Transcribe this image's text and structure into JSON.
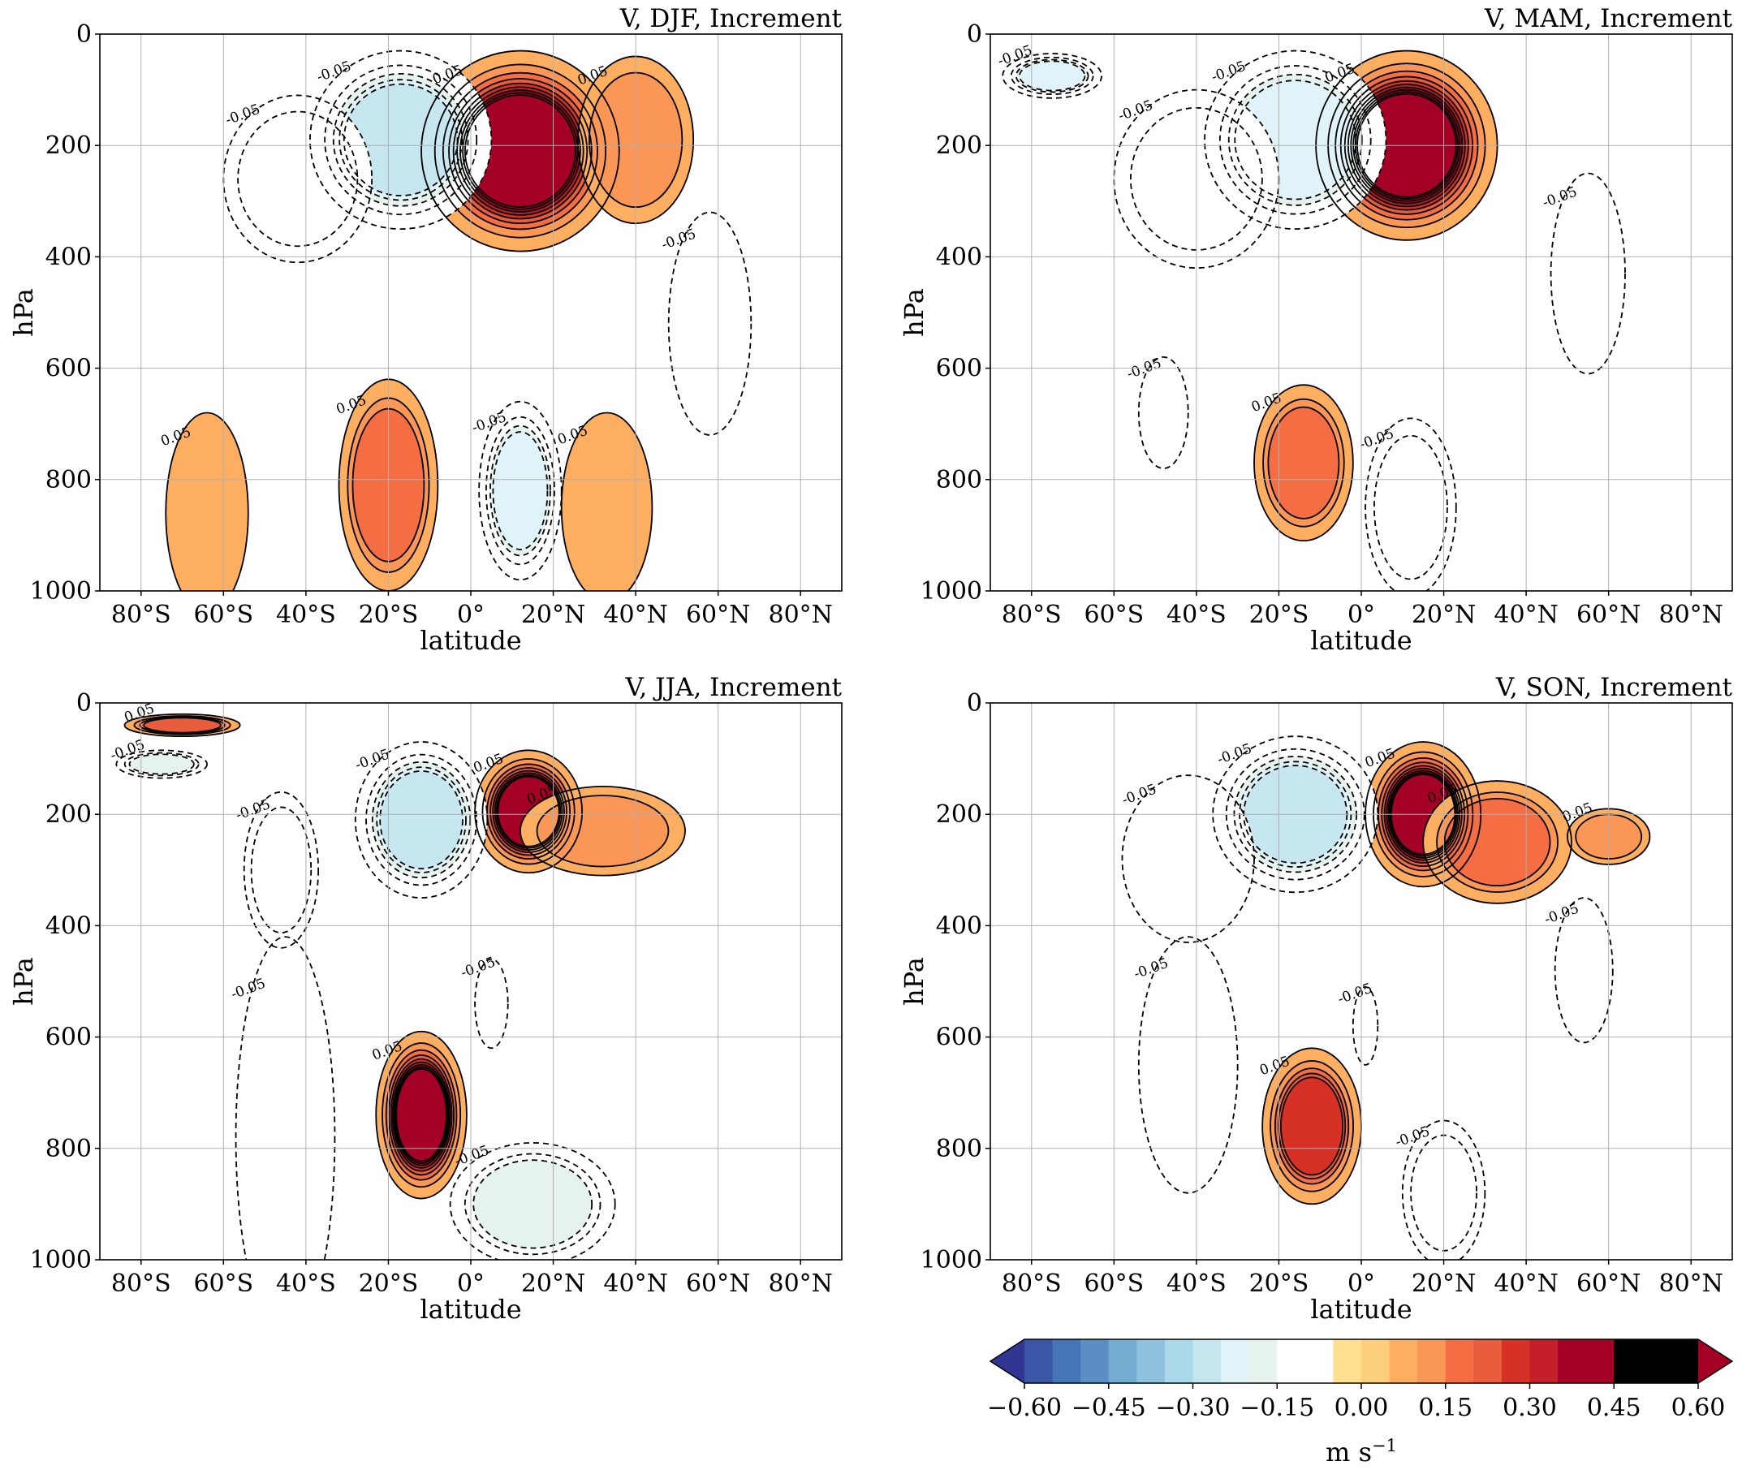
{
  "chart_data": {
    "type": "contour",
    "x_ticks": [
      "80°S",
      "60°S",
      "40°S",
      "20°S",
      "0°",
      "20°N",
      "40°N",
      "60°N",
      "80°N"
    ],
    "x_tick_values": [
      -80,
      -60,
      -40,
      -20,
      0,
      20,
      40,
      60,
      80
    ],
    "y_ticks": [
      "0",
      "200",
      "400",
      "600",
      "800",
      "1000"
    ],
    "y_tick_values": [
      0,
      200,
      400,
      600,
      800,
      1000
    ],
    "xlim": [
      -90,
      90
    ],
    "ylim": [
      1000,
      0
    ],
    "contour_label_pos": "0.05",
    "contour_label_neg": "-0.05",
    "panels": [
      {
        "title": "V, DJF, Increment",
        "xlabel": "latitude",
        "ylabel": "hPa",
        "features": [
          {
            "lat": 12,
            "p": 210,
            "rx": 24,
            "ry": 180,
            "peak": 0.48
          },
          {
            "lat": 40,
            "p": 190,
            "rx": 14,
            "ry": 150,
            "peak": 0.12
          },
          {
            "lat": -17,
            "p": 190,
            "rx": 22,
            "ry": 160,
            "peak": -0.25
          },
          {
            "lat": -42,
            "p": 260,
            "rx": 18,
            "ry": 150,
            "peak": -0.12
          },
          {
            "lat": 58,
            "p": 520,
            "rx": 10,
            "ry": 200,
            "peak": -0.08
          },
          {
            "lat": -20,
            "p": 810,
            "rx": 12,
            "ry": 190,
            "peak": 0.18
          },
          {
            "lat": 12,
            "p": 820,
            "rx": 10,
            "ry": 160,
            "peak": -0.2
          },
          {
            "lat": -64,
            "p": 860,
            "rx": 10,
            "ry": 180,
            "peak": 0.07
          },
          {
            "lat": 33,
            "p": 850,
            "rx": 11,
            "ry": 170,
            "peak": 0.08
          }
        ]
      },
      {
        "title": "V, MAM, Increment",
        "xlabel": "latitude",
        "ylabel": "hPa",
        "features": [
          {
            "lat": 11,
            "p": 200,
            "rx": 22,
            "ry": 170,
            "peak": 0.52
          },
          {
            "lat": -16,
            "p": 190,
            "rx": 22,
            "ry": 160,
            "peak": -0.22
          },
          {
            "lat": -40,
            "p": 260,
            "rx": 20,
            "ry": 160,
            "peak": -0.1
          },
          {
            "lat": 55,
            "p": 430,
            "rx": 9,
            "ry": 180,
            "peak": -0.08
          },
          {
            "lat": -14,
            "p": 770,
            "rx": 12,
            "ry": 140,
            "peak": 0.16
          },
          {
            "lat": 12,
            "p": 850,
            "rx": 11,
            "ry": 160,
            "peak": -0.12
          },
          {
            "lat": -48,
            "p": 680,
            "rx": 6,
            "ry": 100,
            "peak": -0.07
          },
          {
            "lat": -75,
            "p": 75,
            "rx": 12,
            "ry": 40,
            "peak": -0.2
          }
        ]
      },
      {
        "title": "V, JJA, Increment",
        "xlabel": "latitude",
        "ylabel": "hPa",
        "features": [
          {
            "lat": 14,
            "p": 195,
            "rx": 13,
            "ry": 110,
            "peak": 0.42
          },
          {
            "lat": 32,
            "p": 230,
            "rx": 20,
            "ry": 80,
            "peak": 0.1
          },
          {
            "lat": -12,
            "p": 210,
            "rx": 16,
            "ry": 140,
            "peak": -0.25
          },
          {
            "lat": -46,
            "p": 300,
            "rx": 9,
            "ry": 140,
            "peak": -0.12
          },
          {
            "lat": -12,
            "p": 740,
            "rx": 11,
            "ry": 150,
            "peak": 0.45
          },
          {
            "lat": 15,
            "p": 900,
            "rx": 20,
            "ry": 110,
            "peak": -0.17
          },
          {
            "lat": -45,
            "p": 780,
            "rx": 12,
            "ry": 360,
            "peak": -0.06
          },
          {
            "lat": 5,
            "p": 540,
            "rx": 4,
            "ry": 80,
            "peak": -0.06
          },
          {
            "lat": -70,
            "p": 40,
            "rx": 14,
            "ry": 20,
            "peak": 0.22
          },
          {
            "lat": -75,
            "p": 110,
            "rx": 11,
            "ry": 25,
            "peak": -0.15
          }
        ]
      },
      {
        "title": "V, SON, Increment",
        "xlabel": "latitude",
        "ylabel": "hPa",
        "features": [
          {
            "lat": 15,
            "p": 200,
            "rx": 14,
            "ry": 130,
            "peak": 0.45
          },
          {
            "lat": 33,
            "p": 250,
            "rx": 18,
            "ry": 110,
            "peak": 0.15
          },
          {
            "lat": 60,
            "p": 240,
            "rx": 10,
            "ry": 50,
            "peak": 0.1
          },
          {
            "lat": -16,
            "p": 200,
            "rx": 20,
            "ry": 140,
            "peak": -0.25
          },
          {
            "lat": -42,
            "p": 280,
            "rx": 16,
            "ry": 150,
            "peak": -0.09
          },
          {
            "lat": -12,
            "p": 760,
            "rx": 12,
            "ry": 140,
            "peak": 0.25
          },
          {
            "lat": 20,
            "p": 880,
            "rx": 10,
            "ry": 130,
            "peak": -0.1
          },
          {
            "lat": 54,
            "p": 480,
            "rx": 7,
            "ry": 130,
            "peak": -0.08
          },
          {
            "lat": -42,
            "p": 650,
            "rx": 12,
            "ry": 230,
            "peak": -0.06
          },
          {
            "lat": 1,
            "p": 580,
            "rx": 3,
            "ry": 70,
            "peak": -0.06
          }
        ]
      }
    ],
    "colorbar": {
      "levels": [
        -0.6,
        -0.55,
        -0.5,
        -0.45,
        -0.4,
        -0.35,
        -0.3,
        -0.25,
        -0.2,
        -0.15,
        -0.1,
        -0.05,
        0.0,
        0.05,
        0.1,
        0.15,
        0.2,
        0.25,
        0.3,
        0.35,
        0.4,
        0.45,
        0.5,
        0.55,
        0.6
      ],
      "colors": [
        "#313695",
        "#3b56a5",
        "#4575b4",
        "#5b8ec2",
        "#74add1",
        "#8fc3dd",
        "#abd9e9",
        "#c6e6f0",
        "#e0f3f8",
        "#e6f3ec",
        "#ffffff",
        "#ffffff",
        "#fee090",
        "#fecf7b",
        "#fdae61",
        "#fa9656",
        "#f46d43",
        "#e95c3c",
        "#d73027",
        "#c51f29",
        "#a50026",
        "#a50026"
      ],
      "extend": "both",
      "ticks": [
        -0.6,
        -0.45,
        -0.3,
        -0.15,
        0.0,
        0.15,
        0.3,
        0.45,
        0.6
      ],
      "tick_labels": [
        "−0.60",
        "−0.45",
        "−0.30",
        "−0.15",
        "0.00",
        "0.15",
        "0.30",
        "0.45",
        "0.60"
      ],
      "label_main": "m s",
      "label_exp": "−1"
    }
  }
}
